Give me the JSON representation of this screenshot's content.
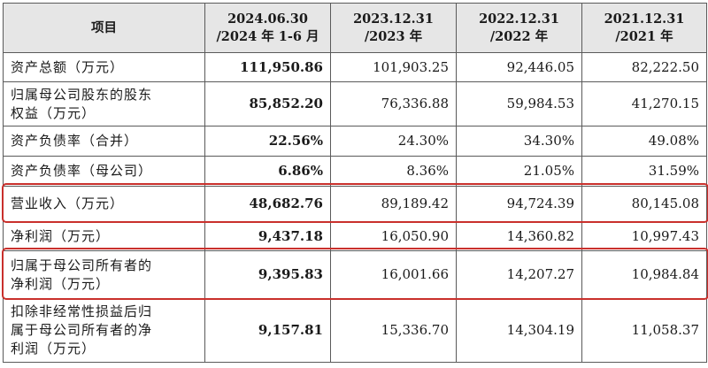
{
  "header": {
    "item": "项目",
    "cols": [
      {
        "line1": "2024.06.30",
        "line2": "/2024 年 1-6 月"
      },
      {
        "line1": "2023.12.31",
        "line2": "/2023 年"
      },
      {
        "line1": "2022.12.31",
        "line2": "/2022 年"
      },
      {
        "line1": "2021.12.31",
        "line2": "/2021 年"
      }
    ]
  },
  "rows": [
    {
      "label_lines": [
        "资产总额（万元）"
      ],
      "values": [
        "111,950.86",
        "101,903.25",
        "92,446.05",
        "82,222.50"
      ],
      "highlighted": false
    },
    {
      "label_lines": [
        "归属母公司股东的股东",
        "权益（万元）"
      ],
      "values": [
        "85,852.20",
        "76,336.88",
        "59,984.53",
        "41,270.15"
      ],
      "highlighted": false
    },
    {
      "label_lines": [
        "资产负债率（合并）"
      ],
      "values": [
        "22.56%",
        "24.30%",
        "34.30%",
        "49.08%"
      ],
      "highlighted": false
    },
    {
      "label_lines": [
        "资产负债率（母公司）"
      ],
      "values": [
        "6.86%",
        "8.36%",
        "21.05%",
        "31.59%"
      ],
      "highlighted": false
    },
    {
      "label_lines": [
        "营业收入（万元）"
      ],
      "values": [
        "48,682.76",
        "89,189.42",
        "94,724.39",
        "80,145.08"
      ],
      "highlighted": true
    },
    {
      "label_lines": [
        "净利润（万元）"
      ],
      "values": [
        "9,437.18",
        "16,050.90",
        "14,360.82",
        "10,997.43"
      ],
      "highlighted": false
    },
    {
      "label_lines": [
        "归属于母公司所有者的",
        "净利润（万元）"
      ],
      "values": [
        "9,395.83",
        "16,001.66",
        "14,207.27",
        "10,984.84"
      ],
      "highlighted": true
    },
    {
      "label_lines": [
        "扣除非经常性损益后归",
        "属于母公司所有者的净",
        "利润（万元）"
      ],
      "values": [
        "9,157.81",
        "15,336.70",
        "14,304.19",
        "11,058.37"
      ],
      "highlighted": false
    }
  ],
  "colors": {
    "highlight": "#c9302c",
    "header_bg": "#e6e6e6",
    "border": "#5a5a5a"
  }
}
